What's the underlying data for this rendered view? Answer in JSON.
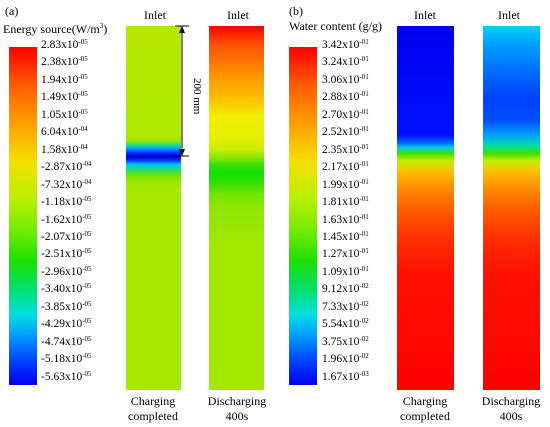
{
  "panel_a": {
    "tag": "(a)",
    "colorbar_title_main": "Energy source(W/m",
    "colorbar_title_sup": "3",
    "colorbar_title_end": ")",
    "ticks": [
      {
        "m": "2.83",
        "e": "-05"
      },
      {
        "m": "2.38",
        "e": "-05"
      },
      {
        "m": "1.94",
        "e": "-05"
      },
      {
        "m": "1.49",
        "e": "-05"
      },
      {
        "m": "1.05",
        "e": "-05"
      },
      {
        "m": "6.04",
        "e": "-04"
      },
      {
        "m": "1.58",
        "e": "-04"
      },
      {
        "m": "-2.87",
        "e": "-04"
      },
      {
        "m": "-7.32",
        "e": "-04"
      },
      {
        "m": "-1.18",
        "e": "-05"
      },
      {
        "m": "-1.62",
        "e": "-05"
      },
      {
        "m": "-2.07",
        "e": "-05"
      },
      {
        "m": "-2.51",
        "e": "-05"
      },
      {
        "m": "-2.96",
        "e": "-05"
      },
      {
        "m": "-3.40",
        "e": "-05"
      },
      {
        "m": "-3.85",
        "e": "-05"
      },
      {
        "m": "-4.29",
        "e": "-05"
      },
      {
        "m": "-4.74",
        "e": "-05"
      },
      {
        "m": "-5.18",
        "e": "-05"
      },
      {
        "m": "-5.63",
        "e": "-05"
      }
    ],
    "col1_inlet": "Inlet",
    "col2_inlet": "Inlet",
    "col1_caption_l1": "Charging",
    "col1_caption_l2": "completed",
    "col2_caption_l1": "Discharging",
    "col2_caption_l2": "400s",
    "dimension_label": "200 mm"
  },
  "panel_b": {
    "tag": "(b)",
    "colorbar_title": "Water content (g/g)",
    "ticks": [
      {
        "m": "3.42",
        "e": "-01"
      },
      {
        "m": "3.24",
        "e": "-01"
      },
      {
        "m": "3.06",
        "e": "-01"
      },
      {
        "m": "2.88",
        "e": "-01"
      },
      {
        "m": "2.70",
        "e": "-01"
      },
      {
        "m": "2.52",
        "e": "-01"
      },
      {
        "m": "2.35",
        "e": "-01"
      },
      {
        "m": "2.17",
        "e": "-01"
      },
      {
        "m": "1.99",
        "e": "-01"
      },
      {
        "m": "1.81",
        "e": "-01"
      },
      {
        "m": "1.63",
        "e": "-01"
      },
      {
        "m": "1.45",
        "e": "-01"
      },
      {
        "m": "1.27",
        "e": "-01"
      },
      {
        "m": "1.09",
        "e": "-01"
      },
      {
        "m": "9.12",
        "e": "-02"
      },
      {
        "m": "7.33",
        "e": "-02"
      },
      {
        "m": "5.54",
        "e": "-02"
      },
      {
        "m": "3.75",
        "e": "-02"
      },
      {
        "m": "1.96",
        "e": "-02"
      },
      {
        "m": "1.67",
        "e": "-03"
      }
    ],
    "col1_inlet": "Inlet",
    "col2_inlet": "Inlet",
    "col1_caption_l1": "Charging",
    "col1_caption_l2": "completed",
    "col2_caption_l1": "Discharging",
    "col2_caption_l2": "400s"
  },
  "colors": {
    "red": "#ff0000",
    "orange": "#ff8000",
    "yellow": "#f0f000",
    "green": "#00e000",
    "cyan": "#00e0ff",
    "blue": "#0000ff"
  }
}
